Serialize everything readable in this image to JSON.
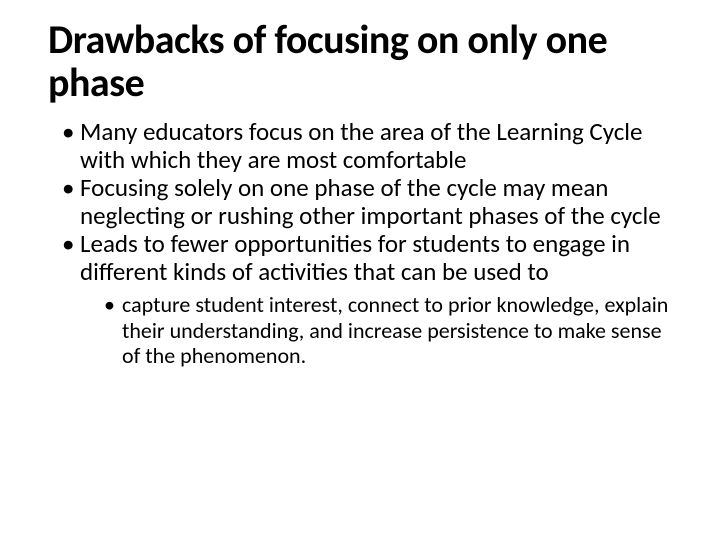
{
  "slide": {
    "background_color": "#ffffff",
    "text_color": "#000000",
    "title": "Drawbacks of focusing on only one phase",
    "title_fontsize": 40,
    "title_fontweight": 700,
    "body_fontsize_level1": 25,
    "body_fontsize_level2": 22,
    "font_family": "Calibri",
    "bullets": [
      {
        "text": "Many educators focus on the area of the Learning Cycle with which they are most comfortable",
        "children": []
      },
      {
        "text": "Focusing solely on one phase of the cycle may mean neglecting or rushing other important phases of the cycle",
        "children": []
      },
      {
        "text": "Leads to fewer opportunities for students to engage in different kinds of activities that can be used to",
        "children": [
          {
            "text": "capture student interest, connect to prior knowledge, explain their understanding, and increase persistence to make sense of the phenomenon."
          }
        ]
      }
    ]
  }
}
